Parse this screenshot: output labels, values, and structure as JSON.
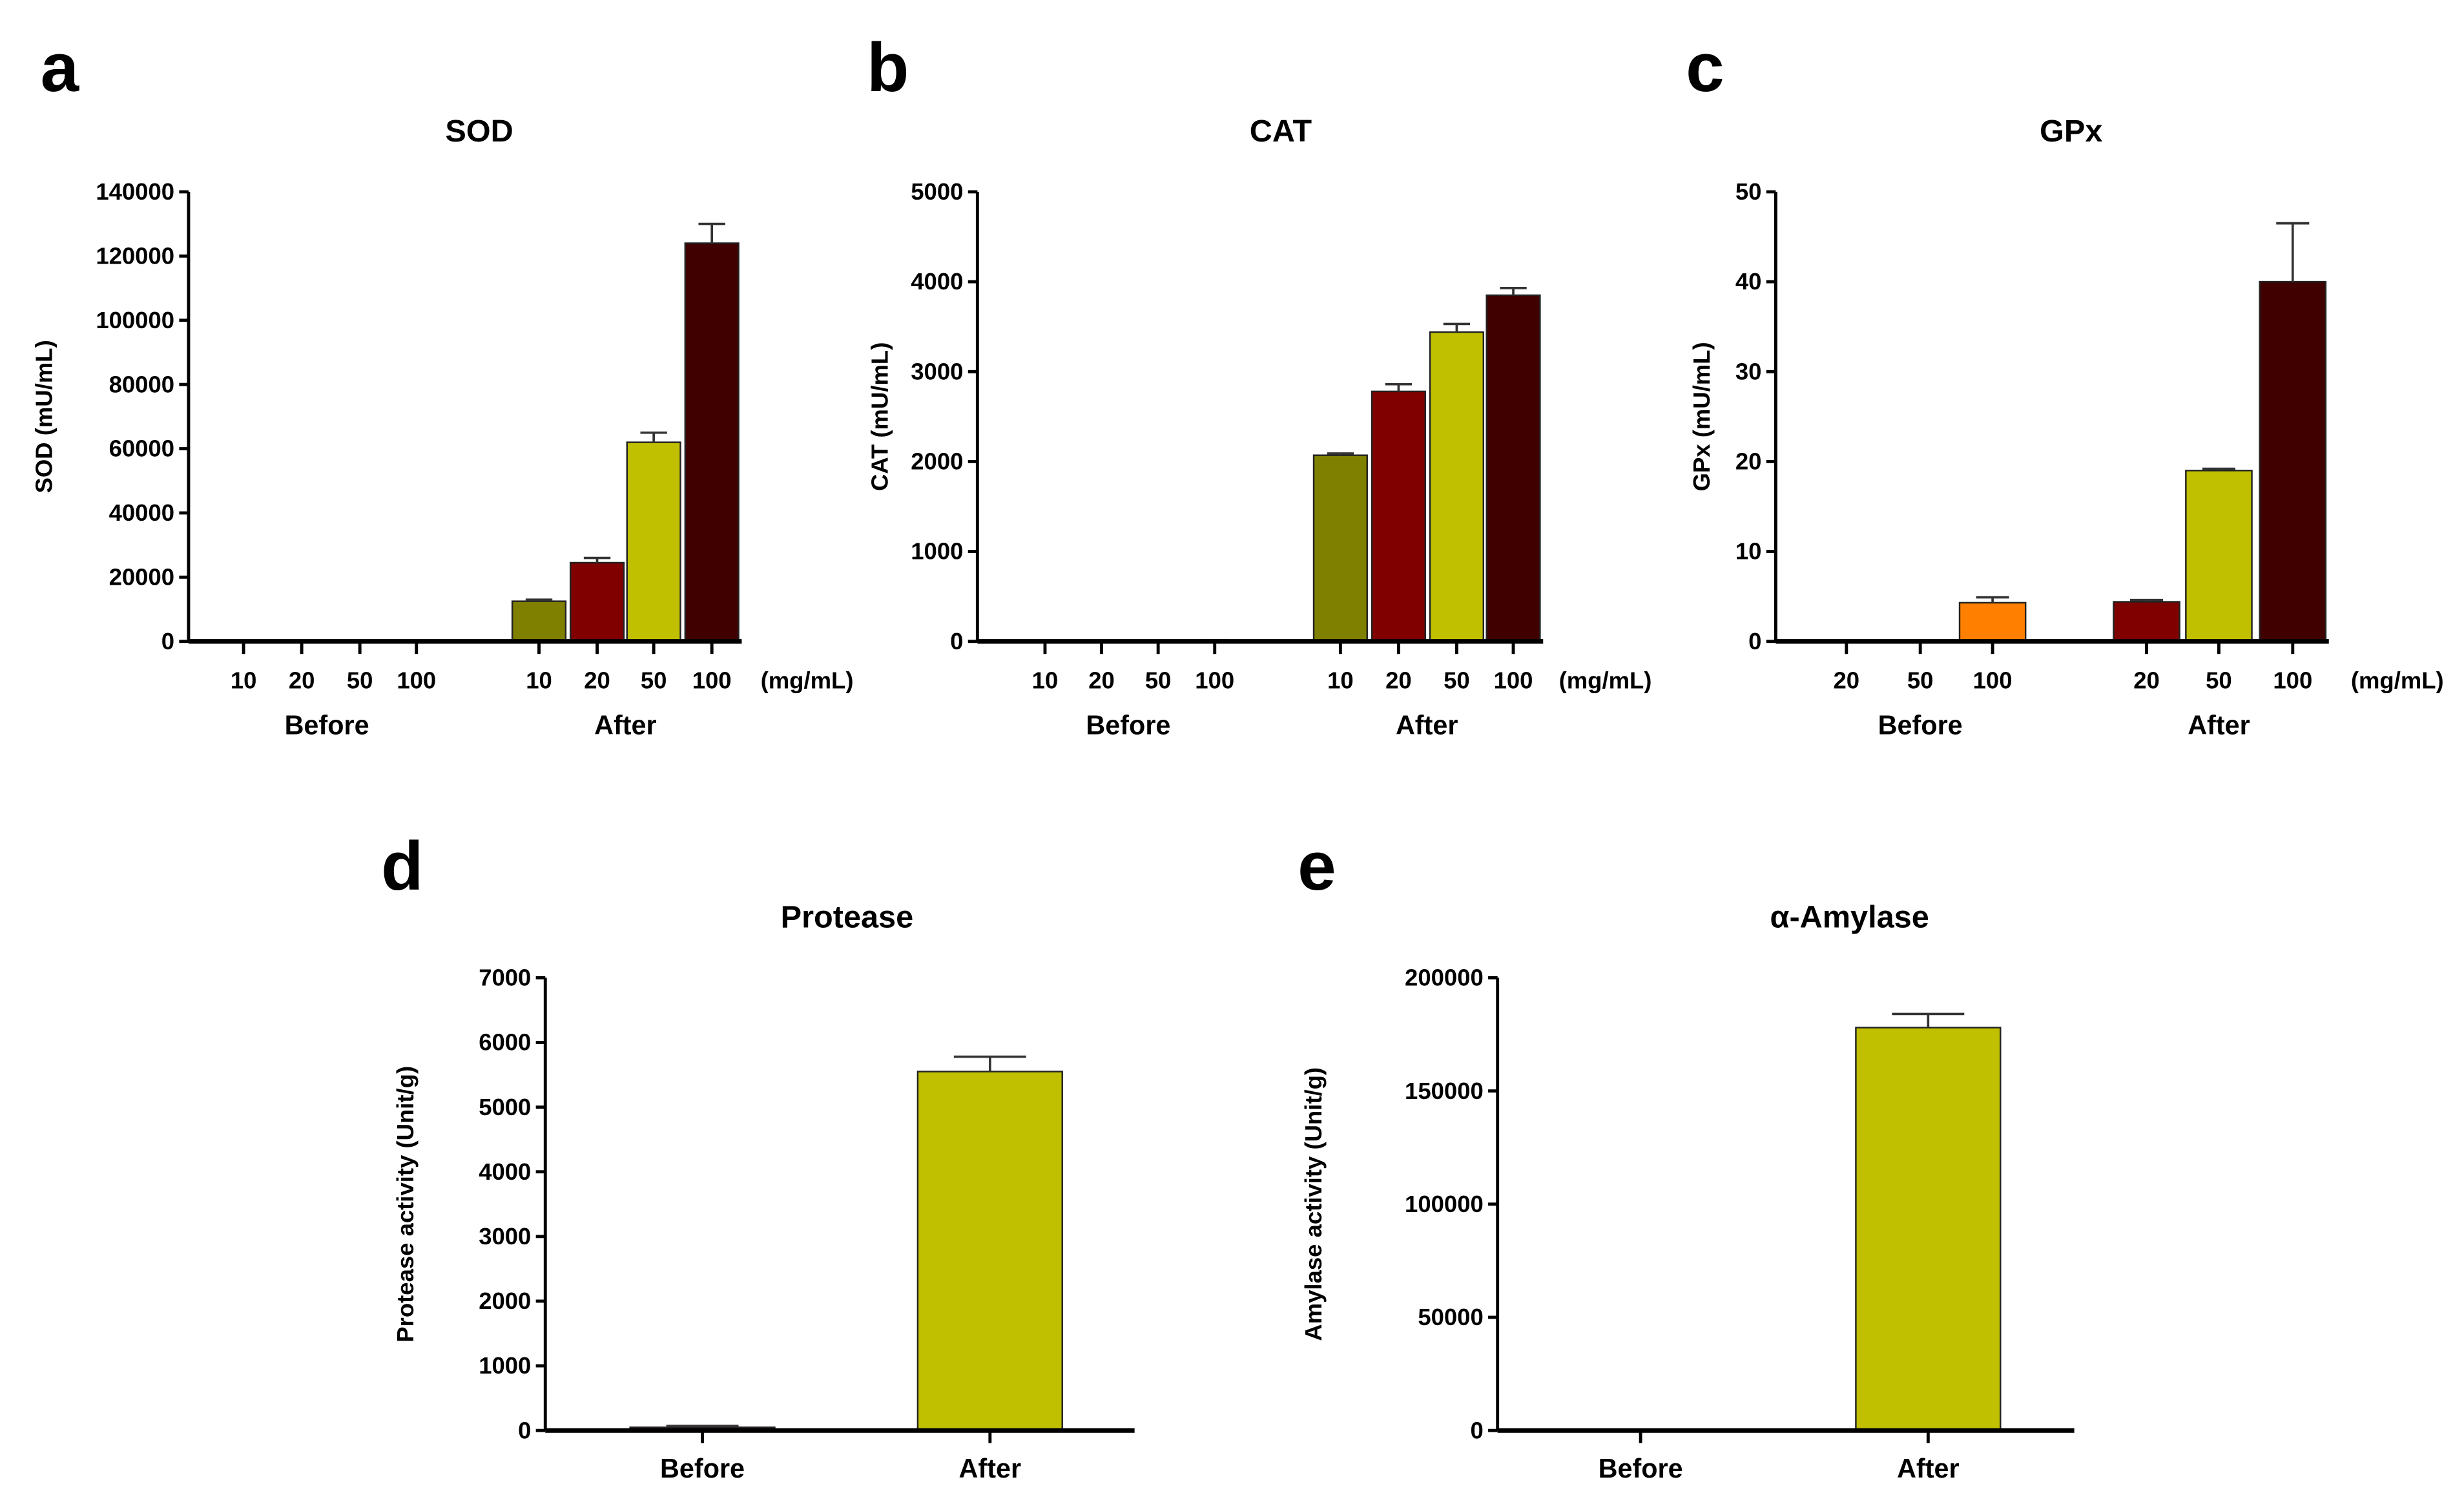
{
  "colors": {
    "olive": "#808000",
    "darkred": "#800000",
    "yellow": "#c0c000",
    "maroon": "#400000",
    "orange": "#ff8000"
  },
  "chart_data": [
    {
      "panel": "a",
      "type": "bar",
      "title": "SOD",
      "ylabel": "SOD (mU/mL)",
      "ylim": [
        0,
        140000
      ],
      "yticks": [
        "0",
        "20000",
        "40000",
        "60000",
        "80000",
        "100000",
        "120000",
        "140000"
      ],
      "ystep": 20000,
      "unit": "(mg/mL)",
      "groups": [
        "Before",
        "After"
      ],
      "bars": [
        {
          "group": "Before",
          "label": "10",
          "value": 0,
          "error": 0,
          "color": "olive"
        },
        {
          "group": "Before",
          "label": "20",
          "value": 0,
          "error": 0,
          "color": "darkred"
        },
        {
          "group": "Before",
          "label": "50",
          "value": 0,
          "error": 0,
          "color": "yellow"
        },
        {
          "group": "Before",
          "label": "100",
          "value": 0,
          "error": 0,
          "color": "maroon"
        },
        {
          "group": "After",
          "label": "10",
          "value": 12500,
          "error": 500,
          "color": "olive"
        },
        {
          "group": "After",
          "label": "20",
          "value": 24500,
          "error": 1500,
          "color": "darkred"
        },
        {
          "group": "After",
          "label": "50",
          "value": 62000,
          "error": 3000,
          "color": "yellow"
        },
        {
          "group": "After",
          "label": "100",
          "value": 124000,
          "error": 6000,
          "color": "maroon"
        }
      ]
    },
    {
      "panel": "b",
      "type": "bar",
      "title": "CAT",
      "ylabel": "CAT (mU/mL)",
      "ylim": [
        0,
        5000
      ],
      "yticks": [
        "0",
        "1000",
        "2000",
        "3000",
        "4000",
        "5000"
      ],
      "ystep": 1000,
      "unit": "(mg/mL)",
      "groups": [
        "Before",
        "After"
      ],
      "bars": [
        {
          "group": "Before",
          "label": "10",
          "value": 0,
          "error": 0,
          "color": "olive"
        },
        {
          "group": "Before",
          "label": "20",
          "value": 0,
          "error": 0,
          "color": "darkred"
        },
        {
          "group": "Before",
          "label": "50",
          "value": 0,
          "error": 0,
          "color": "yellow"
        },
        {
          "group": "Before",
          "label": "100",
          "value": 10,
          "error": 3,
          "color": "maroon"
        },
        {
          "group": "After",
          "label": "10",
          "value": 2070,
          "error": 20,
          "color": "olive"
        },
        {
          "group": "After",
          "label": "20",
          "value": 2780,
          "error": 80,
          "color": "darkred"
        },
        {
          "group": "After",
          "label": "50",
          "value": 3440,
          "error": 90,
          "color": "yellow"
        },
        {
          "group": "After",
          "label": "100",
          "value": 3850,
          "error": 80,
          "color": "maroon"
        }
      ]
    },
    {
      "panel": "c",
      "type": "bar",
      "title": "GPx",
      "ylabel": "GPx (mU/mL)",
      "ylim": [
        0,
        50
      ],
      "yticks": [
        "0",
        "10",
        "20",
        "30",
        "40",
        "50"
      ],
      "ystep": 10,
      "unit": "(mg/mL)",
      "groups": [
        "Before",
        "After"
      ],
      "bars": [
        {
          "group": "Before",
          "label": "20",
          "value": 0,
          "error": 0,
          "color": "darkred"
        },
        {
          "group": "Before",
          "label": "50",
          "value": 0,
          "error": 0,
          "color": "yellow"
        },
        {
          "group": "Before",
          "label": "100",
          "value": 4.3,
          "error": 0.6,
          "color": "orange"
        },
        {
          "group": "After",
          "label": "20",
          "value": 4.4,
          "error": 0.2,
          "color": "darkred"
        },
        {
          "group": "After",
          "label": "50",
          "value": 19,
          "error": 0.2,
          "color": "yellow"
        },
        {
          "group": "After",
          "label": "100",
          "value": 40,
          "error": 6.5,
          "color": "maroon"
        }
      ]
    },
    {
      "panel": "d",
      "type": "bar",
      "title": "Protease",
      "ylabel": "Protease activity (Unit/g)",
      "ylim": [
        0,
        7000
      ],
      "yticks": [
        "0",
        "1000",
        "2000",
        "3000",
        "4000",
        "5000",
        "6000",
        "7000"
      ],
      "ystep": 1000,
      "bars": [
        {
          "label": "Before",
          "value": 50,
          "error": 20,
          "color": "darkred"
        },
        {
          "label": "After",
          "value": 5550,
          "error": 230,
          "color": "yellow"
        }
      ]
    },
    {
      "panel": "e",
      "type": "bar",
      "title": "α-Amylase",
      "ylabel": "Amylase activity (Unit/g)",
      "ylim": [
        0,
        200000
      ],
      "yticks": [
        "0",
        "50000",
        "100000",
        "150000",
        "200000"
      ],
      "ystep": 50000,
      "bars": [
        {
          "label": "Before",
          "value": 0,
          "error": 0,
          "color": "darkred"
        },
        {
          "label": "After",
          "value": 178000,
          "error": 6000,
          "color": "yellow"
        }
      ]
    }
  ]
}
